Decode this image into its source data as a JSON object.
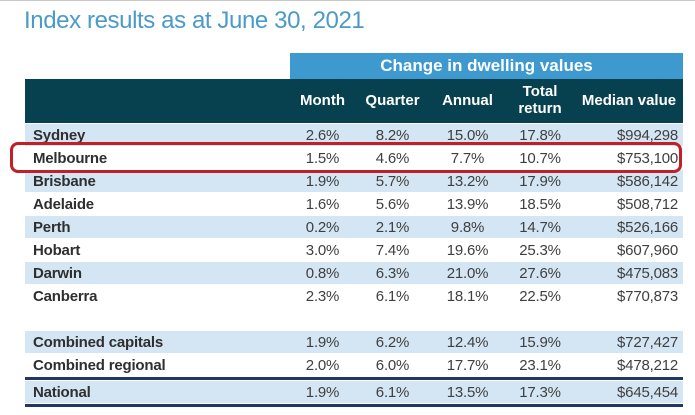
{
  "page_title": "Index results as at June 30, 2021",
  "table": {
    "group_header": "Change in dwelling values",
    "columns": [
      "Month",
      "Quarter",
      "Annual",
      "Total return",
      "Median value"
    ],
    "capital_rows": [
      {
        "name": "Sydney",
        "values": [
          "2.6%",
          "8.2%",
          "15.0%",
          "17.8%",
          "$994,298"
        ]
      },
      {
        "name": "Melbourne",
        "values": [
          "1.5%",
          "4.6%",
          "7.7%",
          "10.7%",
          "$753,100"
        ],
        "highlighted": true
      },
      {
        "name": "Brisbane",
        "values": [
          "1.9%",
          "5.7%",
          "13.2%",
          "17.9%",
          "$586,142"
        ]
      },
      {
        "name": "Adelaide",
        "values": [
          "1.6%",
          "5.6%",
          "13.9%",
          "18.5%",
          "$508,712"
        ]
      },
      {
        "name": "Perth",
        "values": [
          "0.2%",
          "2.1%",
          "9.8%",
          "14.7%",
          "$526,166"
        ]
      },
      {
        "name": "Hobart",
        "values": [
          "3.0%",
          "7.4%",
          "19.6%",
          "25.3%",
          "$607,960"
        ]
      },
      {
        "name": "Darwin",
        "values": [
          "0.8%",
          "6.3%",
          "21.0%",
          "27.6%",
          "$475,083"
        ]
      },
      {
        "name": "Canberra",
        "values": [
          "2.3%",
          "6.1%",
          "18.1%",
          "22.5%",
          "$770,873"
        ]
      }
    ],
    "summary_rows": [
      {
        "name": "Combined capitals",
        "values": [
          "1.9%",
          "6.2%",
          "12.4%",
          "15.9%",
          "$727,427"
        ]
      },
      {
        "name": "Combined regional",
        "values": [
          "2.0%",
          "6.0%",
          "17.7%",
          "23.1%",
          "$478,212"
        ]
      }
    ],
    "national_rows": [
      {
        "name": "National",
        "values": [
          "1.9%",
          "6.1%",
          "13.5%",
          "17.3%",
          "$645,454"
        ]
      }
    ]
  },
  "colors": {
    "title_blue": "#4c9ac8",
    "group_bar_blue": "#3e99cf",
    "header_dark_teal": "#07414f",
    "row_light_blue": "#d4e6f3",
    "highlight_red": "#c02026",
    "divider_navy": "#1f3864"
  },
  "chart_data": {
    "type": "table",
    "title": "Index results as at June 30, 2021",
    "column_group_header": "Change in dwelling values",
    "columns": [
      "",
      "Month",
      "Quarter",
      "Annual",
      "Total return",
      "Median value"
    ],
    "rows": [
      [
        "Sydney",
        "2.6%",
        "8.2%",
        "15.0%",
        "17.8%",
        "$994,298"
      ],
      [
        "Melbourne",
        "1.5%",
        "4.6%",
        "7.7%",
        "10.7%",
        "$753,100"
      ],
      [
        "Brisbane",
        "1.9%",
        "5.7%",
        "13.2%",
        "17.9%",
        "$586,142"
      ],
      [
        "Adelaide",
        "1.6%",
        "5.6%",
        "13.9%",
        "18.5%",
        "$508,712"
      ],
      [
        "Perth",
        "0.2%",
        "2.1%",
        "9.8%",
        "14.7%",
        "$526,166"
      ],
      [
        "Hobart",
        "3.0%",
        "7.4%",
        "19.6%",
        "25.3%",
        "$607,960"
      ],
      [
        "Darwin",
        "0.8%",
        "6.3%",
        "21.0%",
        "27.6%",
        "$475,083"
      ],
      [
        "Canberra",
        "2.3%",
        "6.1%",
        "18.1%",
        "22.5%",
        "$770,873"
      ],
      [
        "Combined capitals",
        "1.9%",
        "6.2%",
        "12.4%",
        "15.9%",
        "$727,427"
      ],
      [
        "Combined regional",
        "2.0%",
        "6.0%",
        "17.7%",
        "23.1%",
        "$478,212"
      ],
      [
        "National",
        "1.9%",
        "6.1%",
        "13.5%",
        "17.3%",
        "$645,454"
      ]
    ],
    "highlighted_row": "Melbourne"
  }
}
